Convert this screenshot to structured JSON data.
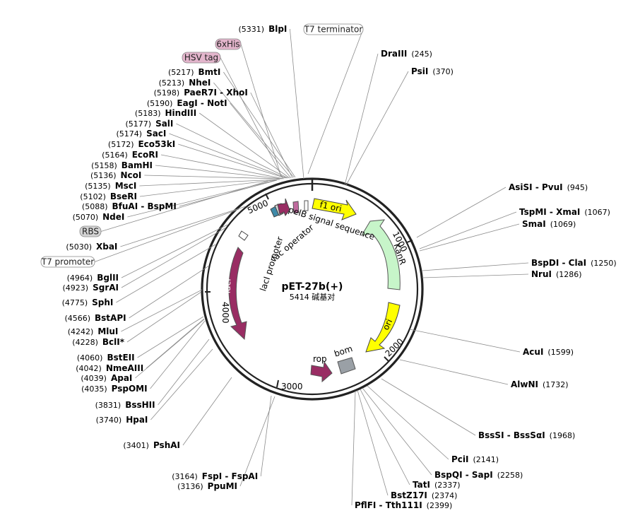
{
  "map": {
    "name": "pET-27b(+)",
    "size_text": "5414 碱基对",
    "length_bp": 5414,
    "ticks": [
      "1000",
      "2000",
      "3000",
      "4000",
      "5000"
    ],
    "colors": {
      "kanr": "#c7f5c9",
      "ori": "#ffff00",
      "lacI": "#992d63",
      "bom": "#9aa0a6",
      "rop": "#992d63",
      "pelB": "#c06a9e",
      "his_tag": "#e3b5cc",
      "gray_tag": "#d4d4d4"
    }
  },
  "features": {
    "f1_ori": "f1 ori",
    "kanr": "KanR",
    "ori": "ori",
    "bom": "bom",
    "rop": "rop",
    "laci": "lacI",
    "laci_promoter": "lacI promoter",
    "lac_operator": "lac operator",
    "pelb": "pelB signal sequence"
  },
  "right_sites": [
    {
      "name": "DraIII",
      "pos": "(245)"
    },
    {
      "name": "PsiI",
      "pos": "(370)"
    },
    {
      "name": "AsiSI - PvuI",
      "pos": "(945)"
    },
    {
      "name": "TspMI - XmaI",
      "pos": "(1067)"
    },
    {
      "name": "SmaI",
      "pos": "(1069)"
    },
    {
      "name": "BspDI - ClaI",
      "pos": "(1250)"
    },
    {
      "name": "NruI",
      "pos": "(1286)"
    },
    {
      "name": "AcuI",
      "pos": "(1599)"
    },
    {
      "name": "AlwNI",
      "pos": "(1732)"
    },
    {
      "name": "BssSI - BssSαI",
      "pos": "(1968)"
    },
    {
      "name": "PciI",
      "pos": "(2141)"
    },
    {
      "name": "BspQI - SapI",
      "pos": "(2258)"
    },
    {
      "name": "TatI",
      "pos": "(2337)"
    },
    {
      "name": "BstZ17I",
      "pos": "(2374)"
    },
    {
      "name": "PflFI - Tth111I",
      "pos": "(2399)"
    }
  ],
  "left_sites": [
    {
      "name": "BlpI",
      "pos": "(5331)"
    },
    {
      "name": "BmtI",
      "pos": "(5217)"
    },
    {
      "name": "NheI",
      "pos": "(5213)"
    },
    {
      "name": "PaeR7I - XhoI",
      "pos": "(5198)"
    },
    {
      "name": "EagI - NotI",
      "pos": "(5190)"
    },
    {
      "name": "HindIII",
      "pos": "(5183)"
    },
    {
      "name": "SalI",
      "pos": "(5177)"
    },
    {
      "name": "SacI",
      "pos": "(5174)"
    },
    {
      "name": "Eco53kI",
      "pos": "(5172)"
    },
    {
      "name": "EcoRI",
      "pos": "(5164)"
    },
    {
      "name": "BamHI",
      "pos": "(5158)"
    },
    {
      "name": "NcoI",
      "pos": "(5136)"
    },
    {
      "name": "MscI",
      "pos": "(5135)"
    },
    {
      "name": "BseRI",
      "pos": "(5102)"
    },
    {
      "name": "BfuAI - BspMI",
      "pos": "(5088)"
    },
    {
      "name": "NdeI",
      "pos": "(5070)"
    },
    {
      "name": "XbaI",
      "pos": "(5030)"
    },
    {
      "name": "BglII",
      "pos": "(4964)"
    },
    {
      "name": "SgrAI",
      "pos": "(4923)"
    },
    {
      "name": "SphI",
      "pos": "(4775)"
    },
    {
      "name": "BstAPI",
      "pos": "(4566)"
    },
    {
      "name": "MluI",
      "pos": "(4242)"
    },
    {
      "name": "BclI*",
      "pos": "(4228)"
    },
    {
      "name": "BstEII",
      "pos": "(4060)"
    },
    {
      "name": "NmeAIII",
      "pos": "(4042)"
    },
    {
      "name": "ApaI",
      "pos": "(4039)"
    },
    {
      "name": "PspOMI",
      "pos": "(4035)"
    },
    {
      "name": "BssHII",
      "pos": "(3831)"
    },
    {
      "name": "HpaI",
      "pos": "(3740)"
    },
    {
      "name": "PshAI",
      "pos": "(3401)"
    },
    {
      "name": "FspI - FspAI",
      "pos": "(3164)"
    },
    {
      "name": "PpuMI",
      "pos": "(3136)"
    }
  ],
  "tags": {
    "t7_terminator": "T7 terminator",
    "his6": "6xHis",
    "hsv": "HSV tag",
    "rbs": "RBS",
    "t7_promoter": "T7 promoter"
  }
}
